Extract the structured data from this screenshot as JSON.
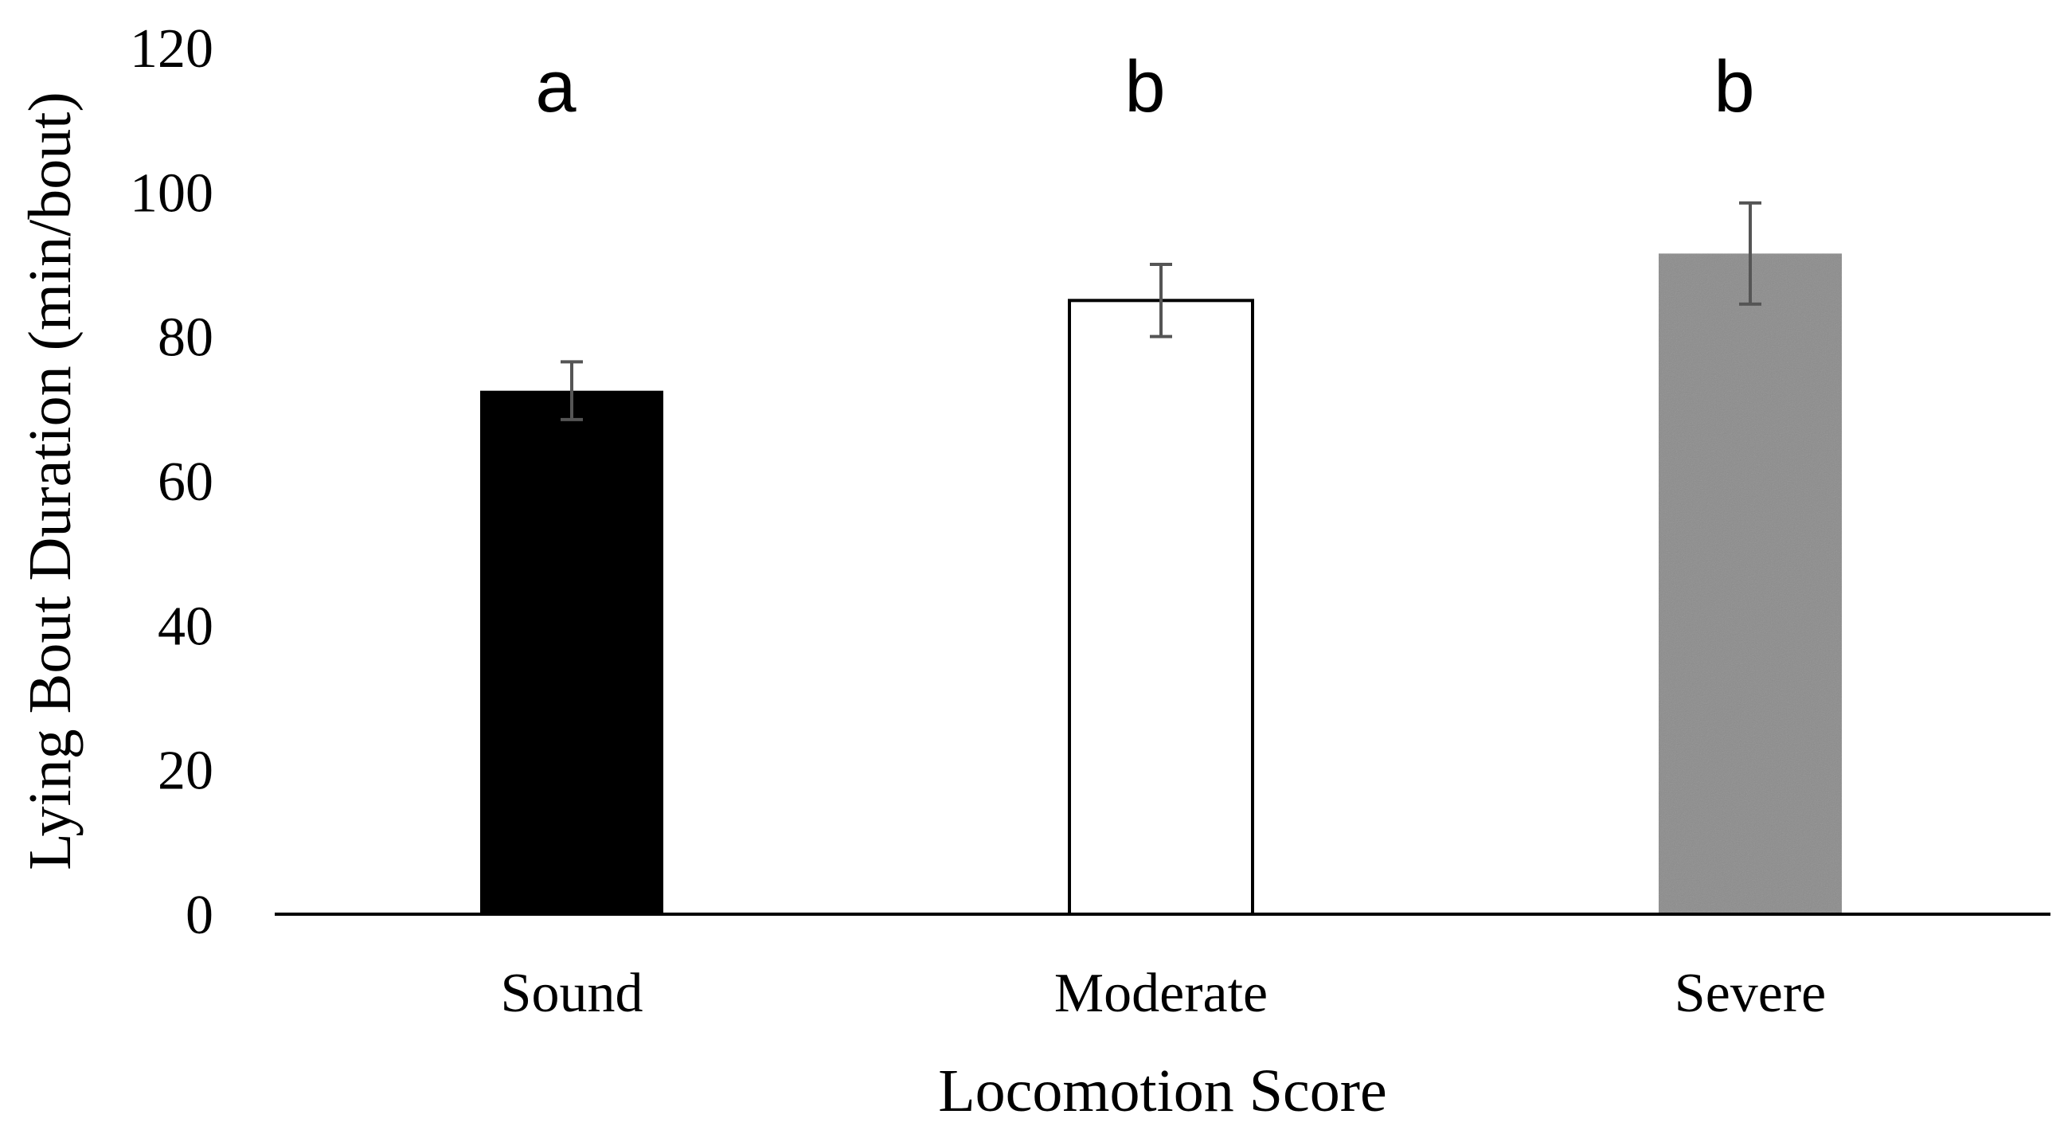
{
  "chart_data": {
    "type": "bar",
    "categories": [
      "Sound",
      "Moderate",
      "Severe"
    ],
    "values": [
      72.5,
      85,
      91.5
    ],
    "error": [
      4,
      5,
      7
    ],
    "significance_letters": [
      "a",
      "b",
      "b"
    ],
    "bar_colors": [
      "#000000",
      "#ffffff",
      "#8c8c8c"
    ],
    "xlabel": "Locomotion Score",
    "ylabel": "Lying Bout Duration (min/bout)",
    "ylim": [
      0,
      120
    ],
    "yticks": [
      "0",
      "20",
      "40",
      "60",
      "80",
      "100",
      "120"
    ],
    "grid": false,
    "legend": "none"
  }
}
